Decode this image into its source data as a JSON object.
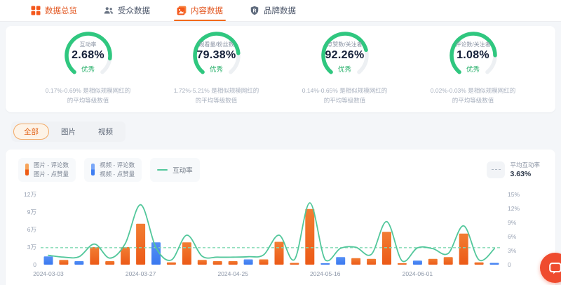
{
  "nav": {
    "tabs": [
      {
        "name": "overview",
        "label": "数据总览",
        "icon": "grid-icon",
        "style": "orange",
        "active": false
      },
      {
        "name": "audience",
        "label": "受众数据",
        "icon": "audience-icon",
        "style": "default",
        "active": false
      },
      {
        "name": "content",
        "label": "内容数据",
        "icon": "content-icon",
        "style": "orange",
        "active": true
      },
      {
        "name": "brand",
        "label": "品牌数据",
        "icon": "brand-icon",
        "style": "default",
        "active": false
      }
    ]
  },
  "gauges": [
    {
      "label": "互动率",
      "value": "2.68%",
      "grade": "优秀",
      "arc": 0.85,
      "desc": [
        "0.17%-0.69% 是相似规模网红的",
        "的平均等级数值"
      ]
    },
    {
      "label": "观看量/粉丝数",
      "value": "79.38%",
      "grade": "优秀",
      "arc": 0.8,
      "desc": [
        "1.72%-5.21% 是相似规模网红的",
        "的平均等级数值"
      ]
    },
    {
      "label": "点赞数/关注者",
      "value": "92.26%",
      "grade": "优秀",
      "arc": 0.77,
      "desc": [
        "0.14%-0.65% 是相似规模网红的",
        "的平均等级数值"
      ]
    },
    {
      "label": "评论数/关注者",
      "value": "1.08%",
      "grade": "优秀",
      "arc": 0.82,
      "desc": [
        "0.02%-0.03% 是相似规模网红的",
        "的平均等级数值"
      ]
    }
  ],
  "filter_tabs": [
    {
      "label": "全部",
      "active": true
    },
    {
      "label": "图片",
      "active": false
    },
    {
      "label": "视频",
      "active": false
    }
  ],
  "legend": {
    "items": [
      {
        "type": "bar",
        "color_top": "#f7a45b",
        "color_bottom": "#ee5c15",
        "lines": [
          "图片 - 评论数",
          "图片 - 点赞量"
        ]
      },
      {
        "type": "bar",
        "color_top": "#7aa7f8",
        "color_bottom": "#3e7ef2",
        "lines": [
          "视频 - 评论数",
          "视频 - 点赞量"
        ]
      },
      {
        "type": "line",
        "color": "#52c79b",
        "lines": [
          "互动率"
        ]
      }
    ],
    "average": {
      "label": "平均互动率",
      "value": "3.63%"
    }
  },
  "chart_data": {
    "type": "bar+line",
    "left_axis": {
      "ticks": [
        "0",
        "3万",
        "6万",
        "9万",
        "12万"
      ],
      "max": 12,
      "unit": "万"
    },
    "right_axis": {
      "ticks": [
        "0",
        "3%",
        "6%",
        "9%",
        "12%",
        "15%"
      ],
      "max": 15,
      "unit": "%"
    },
    "x_labels": [
      "2024-03-03",
      "2024-03-27",
      "2024-04-25",
      "2024-05-16",
      "2024-06-01"
    ],
    "x_label_slots": [
      0,
      6,
      12,
      18,
      24
    ],
    "bars": [
      {
        "color": "blue",
        "value": 1.4
      },
      {
        "color": "orange",
        "value": 0.8
      },
      {
        "color": "blue",
        "value": 0.6
      },
      {
        "color": "orange",
        "value": 3.0
      },
      {
        "color": "orange",
        "value": 0.6
      },
      {
        "color": "orange",
        "value": 3.0
      },
      {
        "color": "orange",
        "value": 7.0
      },
      {
        "color": "blue",
        "value": 3.8
      },
      {
        "color": "orange",
        "value": 0.4
      },
      {
        "color": "orange",
        "value": 3.8
      },
      {
        "color": "orange",
        "value": 0.8
      },
      {
        "color": "orange",
        "value": 0.6
      },
      {
        "color": "orange",
        "value": 0.6
      },
      {
        "color": "blue",
        "value": 0.9
      },
      {
        "color": "orange",
        "value": 0.9
      },
      {
        "color": "orange",
        "value": 3.9
      },
      {
        "color": "orange",
        "value": 0.3
      },
      {
        "color": "orange",
        "value": 9.5
      },
      {
        "color": "blue",
        "value": 0.25
      },
      {
        "color": "blue",
        "value": 1.3
      },
      {
        "color": "orange",
        "value": 1.1
      },
      {
        "color": "orange",
        "value": 1.0
      },
      {
        "color": "orange",
        "value": 5.6
      },
      {
        "color": "orange",
        "value": 0.25
      },
      {
        "color": "blue",
        "value": 0.7
      },
      {
        "color": "orange",
        "value": 1.0
      },
      {
        "color": "orange",
        "value": 1.3
      },
      {
        "color": "orange",
        "value": 5.3
      },
      {
        "color": "orange",
        "value": 0.4
      },
      {
        "color": "blue",
        "value": 0.3
      }
    ],
    "line": {
      "name": "互动率",
      "values": [
        2.0,
        1.6,
        1.7,
        4.4,
        1.4,
        4.5,
        12.8,
        3.6,
        1.0,
        6.3,
        1.8,
        1.6,
        1.6,
        1.7,
        2.1,
        6.3,
        1.1,
        13.2,
        1.0,
        3.5,
        3.7,
        2.2,
        9.2,
        0.8,
        3.6,
        3.4,
        2.4,
        8.3,
        1.0,
        3.4
      ]
    },
    "average_line": {
      "label": "平均互动率",
      "value": 3.63
    }
  },
  "colors": {
    "accent_orange": "#ee6320",
    "bar_blue": "#4285f4",
    "line_green": "#52c79b",
    "avg_dash_green": "#82d9b4",
    "gauge_green": "#2fc77f",
    "gauge_track": "#edf0f3",
    "fab_red": "#ef4b2e"
  },
  "chat_button": {
    "icon": "chat-icon"
  }
}
